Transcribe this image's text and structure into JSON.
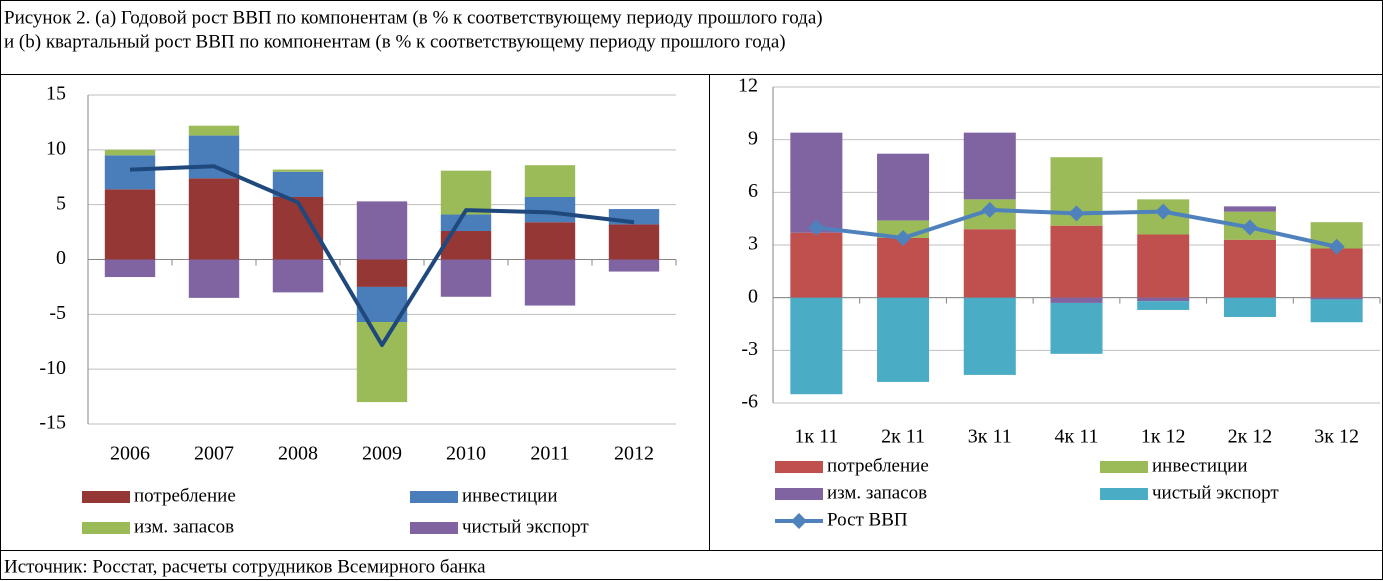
{
  "caption": [
    "Рисунок 2. (a) Годовой рост ВВП по компонентам (в % к соответствующему периоду прошлого года)",
    "и (b) квартальный рост ВВП по компонентам (в % к соответствующему периоду прошлого года)"
  ],
  "source": "Источник: Росстат, расчеты сотрудников Всемирного банка",
  "chart_data": [
    {
      "type": "bar",
      "stacked": true,
      "categories": [
        "2006",
        "2007",
        "2008",
        "2009",
        "2010",
        "2011",
        "2012"
      ],
      "series": [
        {
          "name": "потребление",
          "color": "#953735",
          "values": [
            6.4,
            7.4,
            5.7,
            -2.5,
            2.6,
            3.4,
            3.2
          ]
        },
        {
          "name": "инвестиции",
          "color": "#4a7ebb",
          "values": [
            3.1,
            3.9,
            2.3,
            -3.2,
            1.5,
            2.3,
            1.4
          ]
        },
        {
          "name": "изм. запасов",
          "color": "#9bbb59",
          "values": [
            0.5,
            0.9,
            0.2,
            -7.3,
            4.0,
            2.9,
            0
          ]
        },
        {
          "name": "чистый экспорт",
          "color": "#8064a2",
          "values": [
            -1.6,
            -3.5,
            -3.0,
            5.3,
            -3.4,
            -4.2,
            -1.1
          ]
        },
        {
          "type": "line",
          "color": "#1f497d",
          "values": [
            8.2,
            8.5,
            5.2,
            -7.8,
            4.5,
            4.3,
            3.4
          ]
        }
      ],
      "ylim": [
        -15,
        15
      ],
      "yticks": [
        -15,
        -10,
        -5,
        0,
        5,
        10,
        15
      ],
      "grid": true
    },
    {
      "type": "bar",
      "stacked": true,
      "categories": [
        "1к 11",
        "2к 11",
        "3к 11",
        "4к 11",
        "1к 12",
        "2к 12",
        "3к 12"
      ],
      "series": [
        {
          "name": "потребление",
          "color": "#c0504d",
          "values": [
            3.7,
            3.4,
            3.9,
            4.1,
            3.6,
            3.3,
            2.8
          ]
        },
        {
          "name": "инвестиции",
          "color": "#9bbb59",
          "values": [
            0,
            1.0,
            1.7,
            3.9,
            2.0,
            1.6,
            1.5
          ]
        },
        {
          "name": "изм. запасов",
          "color": "#8064a2",
          "values": [
            5.7,
            3.8,
            3.8,
            -0.3,
            -0.2,
            0.3,
            -0.1
          ]
        },
        {
          "name": "чистый экспорт",
          "color": "#4bacc6",
          "values": [
            -5.5,
            -4.8,
            -4.4,
            -2.9,
            -0.5,
            -1.1,
            -1.3
          ]
        },
        {
          "name": "Рост ВВП",
          "type": "line",
          "marker": "diamond",
          "color": "#4f81bd",
          "values": [
            4.0,
            3.4,
            5.0,
            4.8,
            4.9,
            4.0,
            2.9
          ]
        }
      ],
      "ylim": [
        -6,
        12
      ],
      "yticks": [
        -6,
        -3,
        0,
        3,
        6,
        9,
        12
      ],
      "grid": true
    }
  ]
}
